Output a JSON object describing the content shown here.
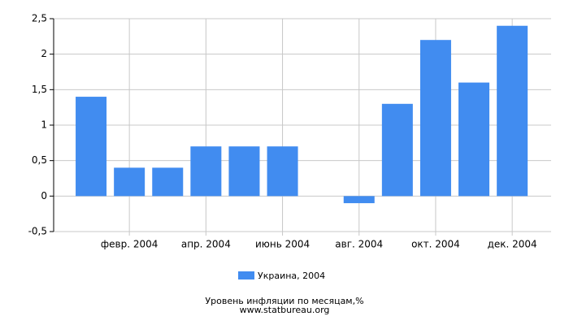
{
  "chart_data": {
    "type": "bar",
    "title": "Уровень инфляции по месяцам,%",
    "subtitle": "www.statbureau.org",
    "categories": [
      null,
      "февр. 2004",
      null,
      "апр. 2004",
      null,
      "июнь 2004",
      null,
      "авг. 2004",
      null,
      "окт. 2004",
      null,
      "дек. 2004"
    ],
    "series": [
      {
        "name": "Украина, 2004",
        "color": "#418cf0",
        "values": [
          1.4,
          0.4,
          0.4,
          0.7,
          0.7,
          0.7,
          0,
          -0.1,
          1.3,
          2.2,
          1.6,
          2.4
        ]
      }
    ],
    "ylim": [
      -0.5,
      2.5
    ],
    "yticks": [
      {
        "value": -0.5,
        "label": "-0,5"
      },
      0,
      {
        "value": 0.5,
        "label": "0,5"
      },
      1,
      {
        "value": 1.5,
        "label": "1,5"
      },
      2,
      {
        "value": 2.5,
        "label": "2,5"
      }
    ],
    "grid": true
  }
}
